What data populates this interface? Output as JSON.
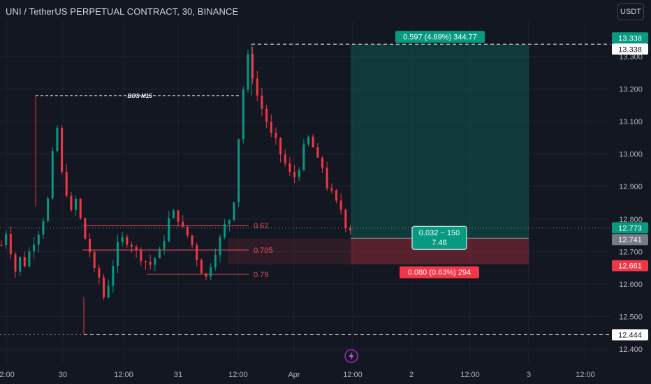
{
  "header": {
    "symbol": "UNI / TetherUS PERPETUAL CONTRACT, 30, BINANCE",
    "currency_button": "USDT"
  },
  "colors": {
    "background": "#131722",
    "bull": "#089981",
    "bear": "#f23645",
    "text": "#d1d4dc",
    "axis_text": "#b2b5be",
    "fib_text": "#e8525e"
  },
  "chart_data": {
    "type": "candlestick",
    "x_axis": {
      "ticks": [
        "2:00",
        "30",
        "12:00",
        "31",
        "12:00",
        "Apr",
        "12:00",
        "2",
        "12:00",
        "3",
        "12:00"
      ]
    },
    "y_axis": {
      "range": [
        12.37,
        13.42
      ],
      "ticks": [
        12.4,
        12.5,
        12.6,
        12.7,
        12.8,
        12.9,
        13.0,
        13.1,
        13.2,
        13.3
      ],
      "tick_labels": [
        "12.400",
        "12.500",
        "12.600",
        "12.700",
        "12.800",
        "12.900",
        "13.000",
        "13.100",
        "13.200",
        "13.300"
      ]
    },
    "close_path": [
      [
        0,
        12.72
      ],
      [
        2,
        12.76
      ],
      [
        4,
        12.7
      ],
      [
        6,
        12.64
      ],
      [
        8,
        12.68
      ],
      [
        10,
        12.66
      ],
      [
        12,
        12.7
      ],
      [
        14,
        12.73
      ],
      [
        16,
        12.76
      ],
      [
        18,
        12.8
      ],
      [
        20,
        12.86
      ],
      [
        22,
        13.0
      ],
      [
        24,
        13.08
      ],
      [
        26,
        12.94
      ],
      [
        28,
        12.88
      ],
      [
        30,
        12.82
      ],
      [
        32,
        12.86
      ],
      [
        34,
        12.8
      ],
      [
        36,
        12.74
      ],
      [
        38,
        12.7
      ],
      [
        40,
        12.64
      ],
      [
        42,
        12.62
      ],
      [
        44,
        12.56
      ],
      [
        46,
        12.6
      ],
      [
        48,
        12.66
      ],
      [
        50,
        12.72
      ],
      [
        52,
        12.74
      ],
      [
        54,
        12.73
      ],
      [
        56,
        12.72
      ],
      [
        58,
        12.7
      ],
      [
        60,
        12.68
      ],
      [
        62,
        12.67
      ],
      [
        64,
        12.66
      ],
      [
        66,
        12.68
      ],
      [
        68,
        12.7
      ],
      [
        70,
        12.74
      ],
      [
        72,
        12.8
      ],
      [
        74,
        12.82
      ],
      [
        76,
        12.8
      ],
      [
        78,
        12.77
      ],
      [
        80,
        12.75
      ],
      [
        82,
        12.72
      ],
      [
        84,
        12.68
      ],
      [
        86,
        12.64
      ],
      [
        88,
        12.62
      ],
      [
        90,
        12.66
      ],
      [
        92,
        12.7
      ],
      [
        94,
        12.74
      ],
      [
        96,
        12.78
      ],
      [
        98,
        12.8
      ],
      [
        100,
        12.86
      ],
      [
        102,
        13.05
      ],
      [
        104,
        13.2
      ],
      [
        106,
        13.3
      ],
      [
        108,
        13.24
      ],
      [
        110,
        13.18
      ],
      [
        112,
        13.14
      ],
      [
        114,
        13.1
      ],
      [
        116,
        13.06
      ],
      [
        118,
        13.04
      ],
      [
        120,
        13.0
      ],
      [
        122,
        12.97
      ],
      [
        124,
        12.94
      ],
      [
        126,
        12.93
      ],
      [
        128,
        12.96
      ],
      [
        130,
        13.02
      ],
      [
        132,
        13.05
      ],
      [
        134,
        13.02
      ],
      [
        136,
        12.98
      ],
      [
        138,
        12.96
      ],
      [
        140,
        12.9
      ],
      [
        142,
        12.88
      ],
      [
        144,
        12.85
      ],
      [
        146,
        12.83
      ],
      [
        148,
        12.78
      ],
      [
        150,
        12.77
      ]
    ],
    "annotations": {
      "structure_label": "BOS M15",
      "structure_level": 13.18,
      "swing_high": 13.338,
      "swing_low": 12.444,
      "fib_levels": [
        {
          "label": "0.62",
          "price": 12.78
        },
        {
          "label": "0.705",
          "price": 12.705
        },
        {
          "label": "0.79",
          "price": 12.63
        }
      ]
    },
    "position": {
      "entry": 12.741,
      "target": 13.338,
      "stop": 12.661,
      "current": 12.773,
      "target_label": "0.597 (4.69%) 344.77",
      "stop_label": "0.080 (0.63%) 294",
      "pnl_line1": "0.032 ~ 150",
      "pnl_line2": "7.46"
    },
    "price_badges": [
      "13.338",
      "13.338",
      "12.773",
      "12.741",
      "12.661",
      "12.444"
    ]
  }
}
